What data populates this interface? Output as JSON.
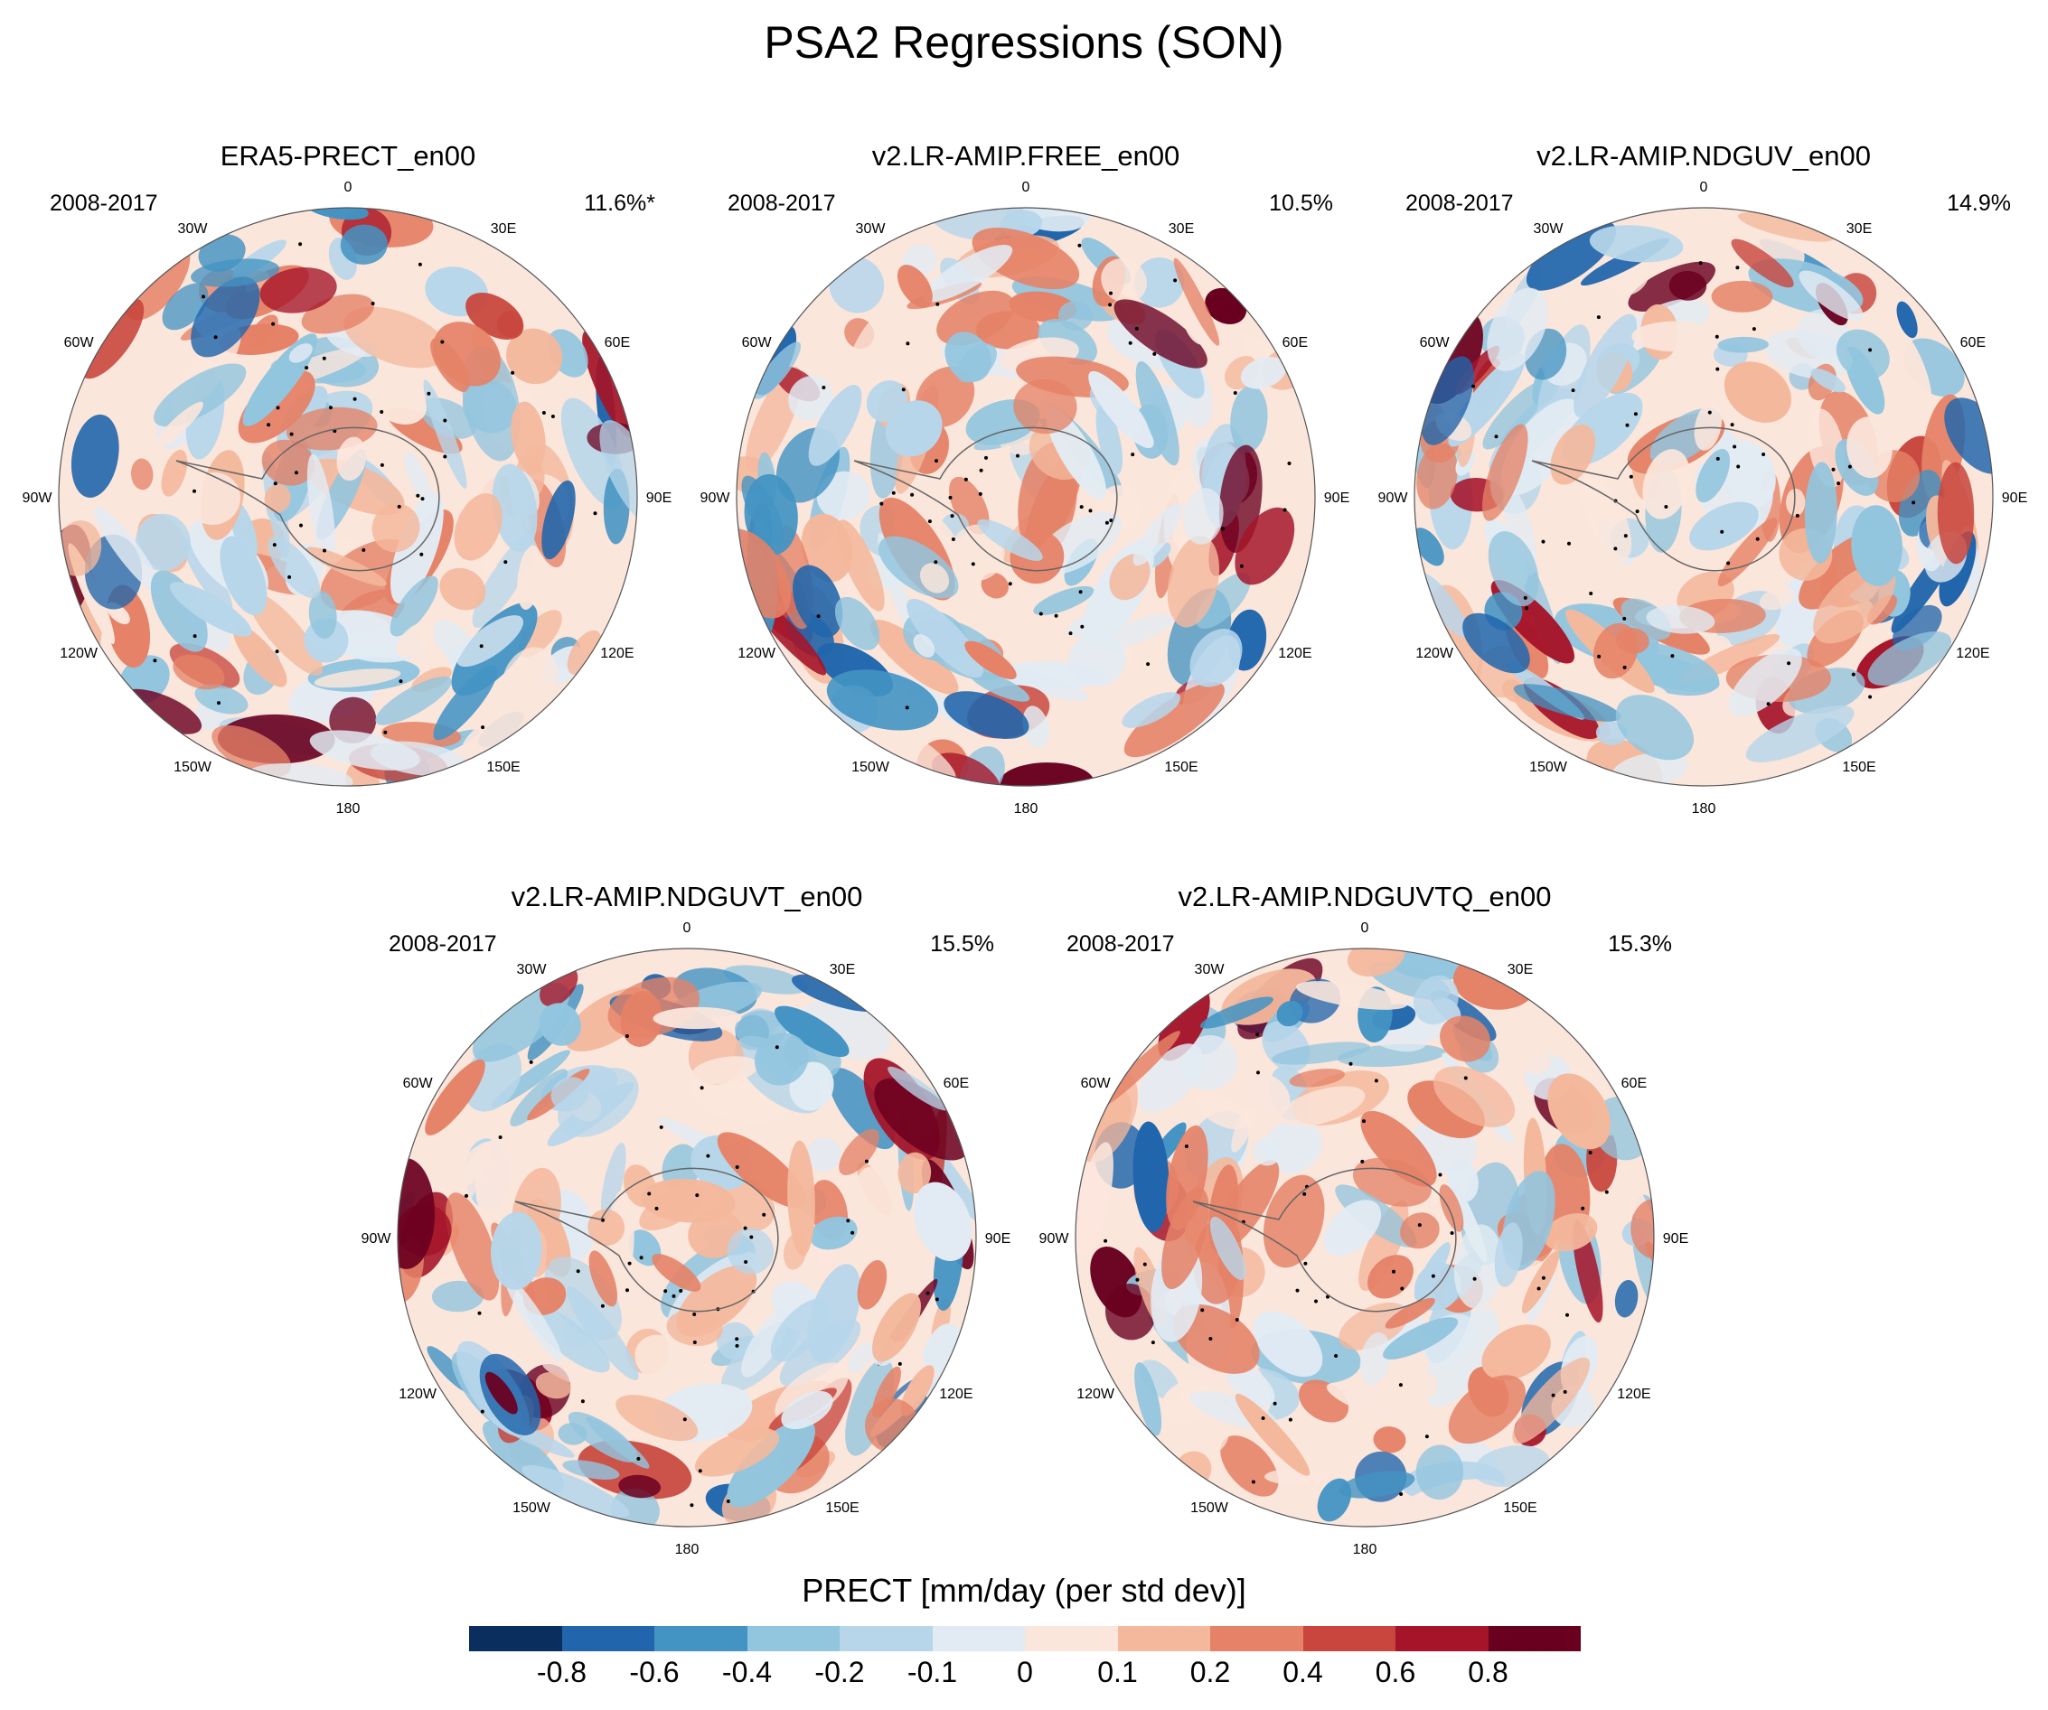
{
  "title": "PSA2 Regressions (SON)",
  "panels": [
    {
      "name": "ERA5-PRECT_en00",
      "period": "2008-2017",
      "percent": "11.6%*"
    },
    {
      "name": "v2.LR-AMIP.FREE_en00",
      "period": "2008-2017",
      "percent": "10.5%"
    },
    {
      "name": "v2.LR-AMIP.NDGUV_en00",
      "period": "2008-2017",
      "percent": "14.9%"
    },
    {
      "name": "v2.LR-AMIP.NDGUVT_en00",
      "period": "2008-2017",
      "percent": "15.5%"
    },
    {
      "name": "v2.LR-AMIP.NDGUVTQ_en00",
      "period": "2008-2017",
      "percent": "15.3%"
    }
  ],
  "longitude_labels": [
    "0",
    "30E",
    "60E",
    "90E",
    "120E",
    "150E",
    "180",
    "150W",
    "120W",
    "90W",
    "60W",
    "30W"
  ],
  "colorbar": {
    "title": "PRECT [mm/day (per std dev)]",
    "ticks": [
      "-0.8",
      "-0.6",
      "-0.4",
      "-0.2",
      "-0.1",
      "0",
      "0.1",
      "0.2",
      "0.4",
      "0.6",
      "0.8"
    ],
    "colors": [
      "#0a2f5e",
      "#2166ac",
      "#4393c3",
      "#92c5de",
      "#b7d6ea",
      "#e2ebf3",
      "#fbe6dc",
      "#f4b89c",
      "#e58267",
      "#c8463d",
      "#a51429",
      "#6a0020"
    ]
  }
}
